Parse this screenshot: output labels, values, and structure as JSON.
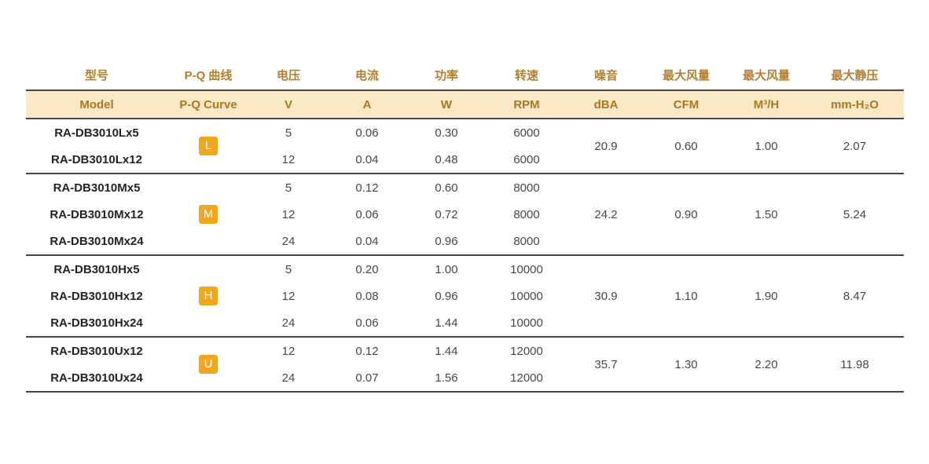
{
  "colors": {
    "header_text": "#B1802F",
    "band_bg": "#FBE8C7",
    "band_text": "#A9781F",
    "rule_line": "#474747",
    "badge_bg": "#F2A61D",
    "badge_text": "#FFFFFF",
    "model_text": "#262222",
    "value_text": "#4A4646"
  },
  "table": {
    "columns_cn": [
      "型号",
      "P-Q 曲线",
      "电压",
      "电流",
      "功率",
      "转速",
      "噪音",
      "最大风量",
      "最大风量",
      "最大静压"
    ],
    "columns_en": [
      "Model",
      "P-Q Curve",
      "V",
      "A",
      "W",
      "RPM",
      "dBA",
      "CFM",
      "M³/H",
      "mm-H₂O"
    ],
    "column_keys": [
      "model",
      "pq-curve",
      "voltage",
      "current",
      "power",
      "speed",
      "noise",
      "max-airflow-cfm",
      "max-airflow-m3h",
      "max-static-pressure"
    ],
    "groups": [
      {
        "curve": "L",
        "rows": [
          {
            "model": "RA-DB3010Lx5",
            "voltage_v": "5",
            "current_a": "0.06",
            "power_w": "0.30",
            "speed_rpm": "6000"
          },
          {
            "model": "RA-DB3010Lx12",
            "voltage_v": "12",
            "current_a": "0.04",
            "power_w": "0.48",
            "speed_rpm": "6000"
          }
        ],
        "noise_dba": "20.9",
        "max_airflow_cfm": "0.60",
        "max_airflow_m3h": "1.00",
        "max_static_pressure_mmh2o": "2.07"
      },
      {
        "curve": "M",
        "rows": [
          {
            "model": "RA-DB3010Mx5",
            "voltage_v": "5",
            "current_a": "0.12",
            "power_w": "0.60",
            "speed_rpm": "8000"
          },
          {
            "model": "RA-DB3010Mx12",
            "voltage_v": "12",
            "current_a": "0.06",
            "power_w": "0.72",
            "speed_rpm": "8000"
          },
          {
            "model": "RA-DB3010Mx24",
            "voltage_v": "24",
            "current_a": "0.04",
            "power_w": "0.96",
            "speed_rpm": "8000"
          }
        ],
        "noise_dba": "24.2",
        "max_airflow_cfm": "0.90",
        "max_airflow_m3h": "1.50",
        "max_static_pressure_mmh2o": "5.24"
      },
      {
        "curve": "H",
        "rows": [
          {
            "model": "RA-DB3010Hx5",
            "voltage_v": "5",
            "current_a": "0.20",
            "power_w": "1.00",
            "speed_rpm": "10000"
          },
          {
            "model": "RA-DB3010Hx12",
            "voltage_v": "12",
            "current_a": "0.08",
            "power_w": "0.96",
            "speed_rpm": "10000"
          },
          {
            "model": "RA-DB3010Hx24",
            "voltage_v": "24",
            "current_a": "0.06",
            "power_w": "1.44",
            "speed_rpm": "10000"
          }
        ],
        "noise_dba": "30.9",
        "max_airflow_cfm": "1.10",
        "max_airflow_m3h": "1.90",
        "max_static_pressure_mmh2o": "8.47"
      },
      {
        "curve": "U",
        "rows": [
          {
            "model": "RA-DB3010Ux12",
            "voltage_v": "12",
            "current_a": "0.12",
            "power_w": "1.44",
            "speed_rpm": "12000"
          },
          {
            "model": "RA-DB3010Ux24",
            "voltage_v": "24",
            "current_a": "0.07",
            "power_w": "1.56",
            "speed_rpm": "12000"
          }
        ],
        "noise_dba": "35.7",
        "max_airflow_cfm": "1.30",
        "max_airflow_m3h": "2.20",
        "max_static_pressure_mmh2o": "11.98"
      }
    ]
  }
}
